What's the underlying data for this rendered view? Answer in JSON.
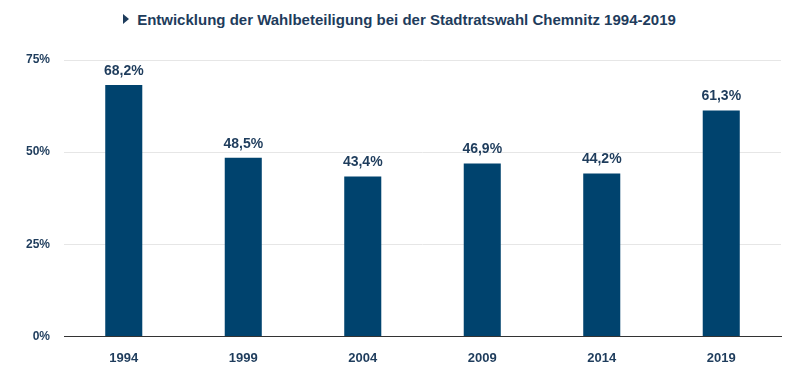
{
  "chart_data": {
    "type": "bar",
    "title": "Entwicklung der Wahlbeteiligung bei der Stadtratswahl Chemnitz 1994-2019",
    "categories": [
      "1994",
      "1999",
      "2004",
      "2009",
      "2014",
      "2019"
    ],
    "values": [
      68.2,
      48.5,
      43.4,
      46.9,
      44.2,
      61.3
    ],
    "value_labels": [
      "68,2%",
      "48,5%",
      "43,4%",
      "46,9%",
      "44,2%",
      "61,3%"
    ],
    "data_labels": true,
    "color": "#00436e",
    "ylim": [
      0,
      75
    ],
    "yticks": [
      {
        "value": 0,
        "label": "0%"
      },
      {
        "value": 25,
        "label": "25%"
      },
      {
        "value": 50,
        "label": "50%"
      },
      {
        "value": 75,
        "label": "75%"
      }
    ],
    "grid": true
  }
}
